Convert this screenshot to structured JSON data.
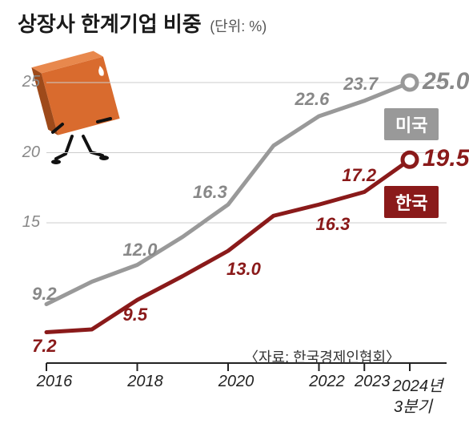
{
  "title": "상장사 한계기업 비중",
  "unit": "(단위: %)",
  "source": "〈자료: 한국경제인협회〉",
  "x_axis": {
    "labels": [
      "2016",
      "2018",
      "2020",
      "2022",
      "2023",
      "2024년"
    ],
    "sub_label": "3분기",
    "positions": [
      0,
      2,
      4,
      6,
      7,
      8
    ]
  },
  "y_axis": {
    "ticks": [
      15,
      20,
      25
    ],
    "min": 5,
    "max": 27
  },
  "series": {
    "us": {
      "name": "미국",
      "color": "#999999",
      "values": [
        9.2,
        10.8,
        12.0,
        14.0,
        16.3,
        20.5,
        22.6,
        23.7,
        25.0
      ],
      "labels": {
        "0": "9.2",
        "2": "12.0",
        "4": "16.3",
        "6": "22.6",
        "7": "23.7",
        "8": "25.0"
      },
      "end_marker": true
    },
    "kr": {
      "name": "한국",
      "color": "#8a1a1a",
      "values": [
        7.2,
        7.4,
        9.5,
        11.2,
        13.0,
        15.5,
        16.3,
        17.2,
        19.5
      ],
      "labels": {
        "0": "7.2",
        "2": "9.5",
        "4": "13.0",
        "6": "16.3",
        "7": "17.2",
        "8": "19.5"
      },
      "end_marker": true
    }
  },
  "style": {
    "background": "#ffffff",
    "grid_color": "#cccccc",
    "axis_color": "#222222",
    "line_width": 5,
    "marker_radius": 9,
    "marker_fill": "#ffffff",
    "marker_stroke_width": 5,
    "title_fontsize": 26,
    "unit_fontsize": 18,
    "tick_fontsize": 20,
    "label_fontsize": 22,
    "end_label_fontsize": 30
  },
  "icon": {
    "box_fill": "#d96b2e",
    "box_shadow": "#9e4a1a",
    "person_color": "#111111"
  }
}
